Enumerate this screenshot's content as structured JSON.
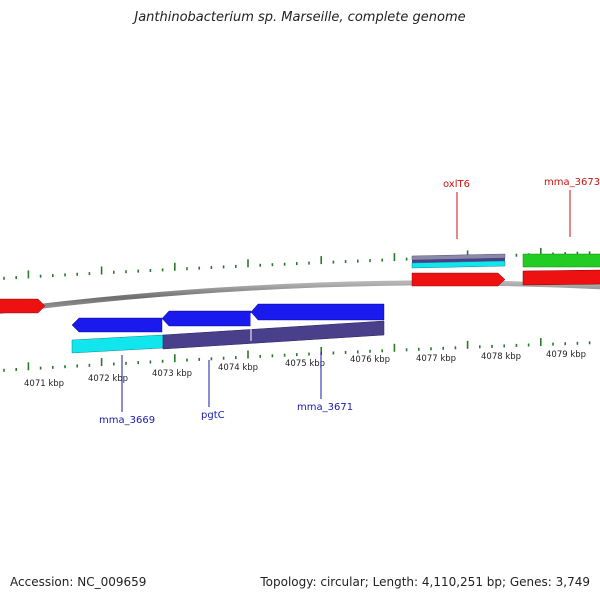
{
  "title": "Janthinobacterium sp. Marseille, complete genome",
  "footer": {
    "accession": "Accession: NC_009659",
    "summary": "Topology: circular; Length: 4,110,251 bp; Genes: 3,749"
  },
  "colors": {
    "backbone": "#8a8a8a",
    "tick": "#2a7a2a",
    "tick_label": "#222222",
    "blue_label": "#1a1aaa",
    "red_label": "#cc1111",
    "gene_red": "#ee1111",
    "gene_blue": "#1a1aee",
    "gene_cyan": "#11e6ee",
    "gene_purple": "#4a3f8a",
    "gene_green": "#22cc22"
  },
  "ruler": {
    "labels": [
      "4071 kbp",
      "4072 kbp",
      "4073 kbp",
      "4074 kbp",
      "4075 kbp",
      "4076 kbp",
      "4077 kbp",
      "4078 kbp",
      "4079 kbp"
    ]
  },
  "gene_labels": [
    {
      "text": "mma_3669",
      "color": "blue"
    },
    {
      "text": "pgtC",
      "color": "blue"
    },
    {
      "text": "mma_3671",
      "color": "blue"
    },
    {
      "text": "oxlT6",
      "color": "red"
    },
    {
      "text": "mma_3673",
      "color": "red"
    }
  ]
}
